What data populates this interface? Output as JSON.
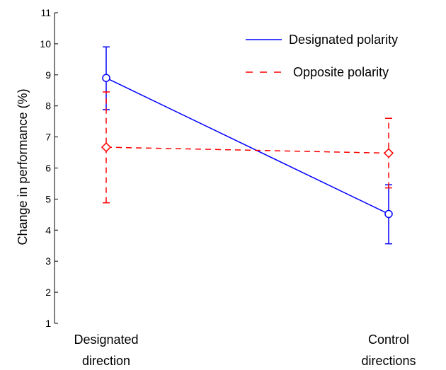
{
  "chart_data": {
    "type": "line",
    "title": "",
    "xlabel": "",
    "ylabel": "Change in performance (%)",
    "ylim": [
      1,
      11
    ],
    "yticks": [
      1,
      2,
      3,
      4,
      5,
      6,
      7,
      8,
      9,
      10,
      11
    ],
    "categories": [
      [
        "Designated",
        "direction"
      ],
      [
        "Control",
        "directions"
      ]
    ],
    "grid": false,
    "legend": "top-right",
    "series": [
      {
        "name": "Designated polarity",
        "color": "#0000ff",
        "line_style": "solid",
        "marker": "circle",
        "values": [
          8.9,
          4.52
        ],
        "error_low": [
          7.88,
          3.56
        ],
        "error_high": [
          9.9,
          5.46
        ]
      },
      {
        "name": "Opposite polarity",
        "color": "#ff0000",
        "line_style": "dashed",
        "marker": "diamond",
        "values": [
          6.67,
          6.48
        ],
        "error_low": [
          4.88,
          5.36
        ],
        "error_high": [
          8.45,
          7.6
        ]
      }
    ]
  }
}
